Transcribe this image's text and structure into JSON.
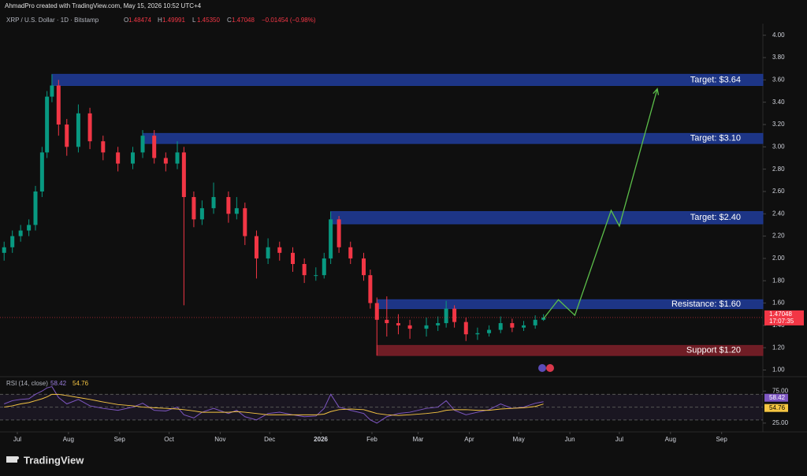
{
  "header": {
    "credit": "AhmadPro created with TradingView.com, May 15, 2026 10:52 UTC+4",
    "symbol": "XRP / U.S. Dollar · 1D · Bitstamp",
    "ohlc": [
      {
        "label": "O",
        "value": "1.48474"
      },
      {
        "label": "H",
        "value": "1.49991"
      },
      {
        "label": "L",
        "value": "1.45350"
      },
      {
        "label": "C",
        "value": "1.47048"
      }
    ],
    "change": "−0.01454 (−0.98%)"
  },
  "brand": "TradingView",
  "chart_data": [
    {
      "type": "candlestick",
      "x": [
        -8,
        -3,
        2,
        7,
        11,
        15,
        18,
        21,
        25,
        30,
        37,
        44,
        52,
        61,
        70,
        76,
        83,
        90,
        97,
        101,
        107,
        112,
        119,
        128,
        133,
        138,
        145,
        152,
        159,
        167,
        174,
        181,
        186,
        190,
        195,
        202,
        210,
        214,
        218,
        224,
        231,
        238,
        248,
        255,
        260,
        265,
        272,
        279,
        286,
        293,
        300,
        307,
        314,
        319
      ],
      "open": [
        2.05,
        2.1,
        2.2,
        2.25,
        2.3,
        2.6,
        2.95,
        3.45,
        3.55,
        3.2,
        3.0,
        3.3,
        3.05,
        2.95,
        2.85,
        2.95,
        3.1,
        2.9,
        2.85,
        2.95,
        2.55,
        2.35,
        2.45,
        2.55,
        2.4,
        2.45,
        2.2,
        2.0,
        2.1,
        2.05,
        1.95,
        1.85,
        1.85,
        2.0,
        2.35,
        2.1,
        2.0,
        1.85,
        1.6,
        1.45,
        1.42,
        1.4,
        1.37,
        1.4,
        1.42,
        1.55,
        1.43,
        1.32,
        1.33,
        1.36,
        1.42,
        1.38,
        1.4,
        1.45
      ],
      "high": [
        2.15,
        2.25,
        2.3,
        2.35,
        2.65,
        3.0,
        3.5,
        3.65,
        3.6,
        3.25,
        3.38,
        3.35,
        3.1,
        3.0,
        3.0,
        3.15,
        3.15,
        2.95,
        3.05,
        3.0,
        2.6,
        2.52,
        2.68,
        2.6,
        2.55,
        2.5,
        2.25,
        2.18,
        2.15,
        2.1,
        2.0,
        1.92,
        2.05,
        2.42,
        2.38,
        2.15,
        2.05,
        1.9,
        1.65,
        1.66,
        1.5,
        1.45,
        1.47,
        1.48,
        1.62,
        1.58,
        1.47,
        1.38,
        1.4,
        1.48,
        1.46,
        1.44,
        1.49,
        1.5
      ],
      "low": [
        1.98,
        2.05,
        2.15,
        2.2,
        2.25,
        2.55,
        2.9,
        3.4,
        3.1,
        2.92,
        2.95,
        2.98,
        2.88,
        2.78,
        2.8,
        2.9,
        2.85,
        2.78,
        2.8,
        1.58,
        2.28,
        2.3,
        2.4,
        2.32,
        2.35,
        2.12,
        1.82,
        1.95,
        1.98,
        1.88,
        1.78,
        1.8,
        1.82,
        1.95,
        2.05,
        1.95,
        1.8,
        1.55,
        1.13,
        1.3,
        1.32,
        1.28,
        1.3,
        1.35,
        1.38,
        1.38,
        1.26,
        1.27,
        1.3,
        1.33,
        1.34,
        1.35,
        1.37,
        1.44
      ],
      "close": [
        2.1,
        2.2,
        2.25,
        2.3,
        2.6,
        2.95,
        3.45,
        3.55,
        3.2,
        3.0,
        3.3,
        3.05,
        2.95,
        2.85,
        2.95,
        3.1,
        2.9,
        2.85,
        2.95,
        2.55,
        2.35,
        2.45,
        2.55,
        2.4,
        2.45,
        2.2,
        2.0,
        2.1,
        2.05,
        1.95,
        1.85,
        1.85,
        2.0,
        2.35,
        2.1,
        2.0,
        1.85,
        1.6,
        1.45,
        1.42,
        1.4,
        1.37,
        1.4,
        1.42,
        1.55,
        1.43,
        1.32,
        1.33,
        1.36,
        1.42,
        1.38,
        1.4,
        1.45,
        1.47
      ],
      "up_color": "#089981",
      "down_color": "#f23645",
      "xlim": [
        -10.5,
        452
      ],
      "xticks": [
        {
          "value": 0,
          "label": "Jul"
        },
        {
          "value": 31,
          "label": "Aug"
        },
        {
          "value": 62,
          "label": "Sep"
        },
        {
          "value": 92,
          "label": "Oct"
        },
        {
          "value": 123,
          "label": "Nov"
        },
        {
          "value": 153,
          "label": "Dec"
        },
        {
          "value": 184,
          "label": "2026"
        },
        {
          "value": 215,
          "label": "Feb"
        },
        {
          "value": 243,
          "label": "Mar"
        },
        {
          "value": 274,
          "label": "Apr"
        },
        {
          "value": 304,
          "label": "May"
        },
        {
          "value": 335,
          "label": "Jun"
        },
        {
          "value": 365,
          "label": "Jul"
        },
        {
          "value": 396,
          "label": "Aug"
        },
        {
          "value": 427,
          "label": "Sep"
        }
      ],
      "ylim": [
        0.94,
        4.09
      ],
      "yticks": [
        {
          "value": 1,
          "label": "1.00"
        },
        {
          "value": 1.2,
          "label": "1.20"
        },
        {
          "value": 1.4,
          "label": "1.40"
        },
        {
          "value": 1.6,
          "label": "1.60"
        },
        {
          "value": 1.8,
          "label": "1.80"
        },
        {
          "value": 2,
          "label": "2.00"
        },
        {
          "value": 2.2,
          "label": "2.20"
        },
        {
          "value": 2.4,
          "label": "2.40"
        },
        {
          "value": 2.6,
          "label": "2.60"
        },
        {
          "value": 2.8,
          "label": "2.80"
        },
        {
          "value": 3,
          "label": "3.00"
        },
        {
          "value": 3.2,
          "label": "3.20"
        },
        {
          "value": 3.4,
          "label": "3.40"
        },
        {
          "value": 3.6,
          "label": "3.60"
        },
        {
          "value": 3.8,
          "label": "3.80"
        },
        {
          "value": 4,
          "label": "4.00"
        }
      ],
      "zones": [
        {
          "label": "Target: $3.64",
          "low": 3.55,
          "high": 3.65,
          "from": 21,
          "color": "#1f3a93"
        },
        {
          "label": "Target: $3.10",
          "low": 3.03,
          "high": 3.12,
          "from": 76,
          "color": "#1f3a93"
        },
        {
          "label": "Target: $2.40",
          "low": 2.31,
          "high": 2.42,
          "from": 190,
          "color": "#1f3a93"
        },
        {
          "label": "Resistance: $1.60",
          "low": 1.55,
          "high": 1.63,
          "from": 218,
          "color": "#1f3a93"
        },
        {
          "label": "Support $1.20",
          "low": 1.13,
          "high": 1.22,
          "from": 218,
          "color": "#7a1f28"
        }
      ],
      "projection": {
        "x": [
          319,
          328,
          338,
          360,
          365,
          388
        ],
        "y": [
          1.46,
          1.63,
          1.49,
          2.43,
          2.29,
          3.52
        ],
        "color": "#5cbf4a"
      },
      "last_price": {
        "value": 1.47048,
        "countdown": "17:07:35",
        "color": "#f23645"
      }
    },
    {
      "type": "line",
      "title": "RSI (14, close)",
      "x": [
        -8,
        -3,
        2,
        7,
        11,
        15,
        18,
        21,
        25,
        30,
        37,
        44,
        52,
        61,
        70,
        76,
        83,
        90,
        97,
        101,
        107,
        112,
        119,
        128,
        133,
        138,
        145,
        152,
        159,
        167,
        174,
        181,
        186,
        190,
        195,
        202,
        210,
        214,
        218,
        224,
        231,
        238,
        248,
        255,
        260,
        265,
        272,
        279,
        286,
        293,
        300,
        307,
        314,
        319
      ],
      "series": [
        {
          "color": "#7e57c2",
          "values": [
            55,
            60,
            62,
            63,
            70,
            75,
            80,
            82,
            65,
            55,
            62,
            52,
            48,
            45,
            50,
            56,
            45,
            44,
            50,
            38,
            33,
            42,
            48,
            40,
            45,
            35,
            30,
            40,
            42,
            38,
            35,
            36,
            48,
            70,
            50,
            45,
            40,
            30,
            25,
            35,
            40,
            42,
            48,
            50,
            60,
            45,
            38,
            42,
            46,
            55,
            48,
            50,
            56,
            58.42
          ]
        },
        {
          "color": "#f5c542",
          "values": [
            50,
            52,
            55,
            57,
            60,
            63,
            66,
            70,
            70,
            68,
            65,
            62,
            58,
            54,
            52,
            50,
            49,
            48,
            47,
            46,
            44,
            42,
            42,
            42,
            43,
            42,
            40,
            38,
            38,
            38,
            38,
            38,
            39,
            43,
            46,
            47,
            46,
            43,
            40,
            38,
            37,
            38,
            40,
            42,
            45,
            46,
            46,
            45,
            45,
            47,
            48,
            49,
            51,
            54.76
          ]
        }
      ],
      "ylim": [
        15,
        95
      ],
      "yticks": [
        {
          "value": 75,
          "label": "75.00"
        },
        {
          "value": 25,
          "label": "25.00"
        }
      ],
      "levels": [
        70,
        50,
        30
      ]
    }
  ]
}
